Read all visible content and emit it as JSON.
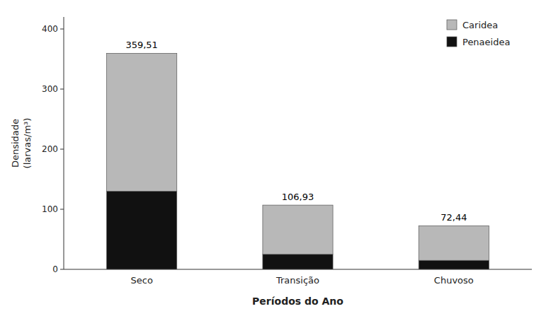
{
  "chart_data": {
    "type": "bar",
    "stacked": true,
    "categories": [
      "Seco",
      "Transição",
      "Chuvoso"
    ],
    "series": [
      {
        "name": "Penaeidea",
        "color": "#111111",
        "values": [
          130.0,
          25.0,
          15.0
        ]
      },
      {
        "name": "Caridea",
        "color": "#b8b8b8",
        "values": [
          229.51,
          81.93,
          57.44
        ]
      }
    ],
    "totals": {
      "values": [
        359.51,
        106.93,
        72.44
      ],
      "value_labels": [
        "359,51",
        "106,93",
        "72,44"
      ]
    },
    "ylabel": [
      "Densidade",
      "(larvas/m³)"
    ],
    "xlabel": "Períodos do Ano",
    "ylim": [
      0,
      420
    ],
    "yticks": [
      0,
      100,
      200,
      300,
      400
    ],
    "grid": false,
    "legend": "upper right"
  }
}
